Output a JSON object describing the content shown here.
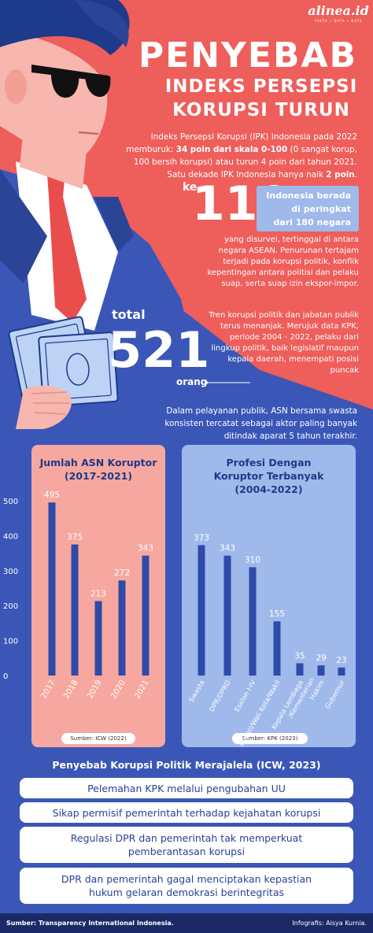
{
  "brand": {
    "logo": "alinea.id",
    "tagline": "FAKTA • DATA • KATA"
  },
  "title": {
    "line1": "PENYEBAB",
    "line2": "INDEKS PERSEPSI",
    "line3": "KORUPSI TURUN"
  },
  "intro": {
    "t1": "Indeks Persepsi Korupsi (IPK) Indonesia pada 2022 memburuk: ",
    "b1": "34 poin dari skala 0-100",
    "t2": " (0 sangat korup, 100 bersih korupsi) atau turun 4 poin dari tahun 2021. Satu dekade IPK Indonesia hanya naik ",
    "b2": "2 poin",
    "t3": "."
  },
  "rank": {
    "prefix": "ke",
    "number": "110",
    "box_line1": "Indonesia berada",
    "box_line2": "di peringkat",
    "box_line3": "dari 180 negara",
    "asean": "yang disurvei, tertinggal di antara negara ASEAN. Penurunan tertajam terjadi pada korupsi politik, konflik kepentingan antara politisi dan pelaku suap, serta suap izin ekspor-impor."
  },
  "kpk": {
    "prefix": "total",
    "number": "521",
    "suffix": "orang",
    "trend": "Tren korupsi politik dan jabatan publik terus menanjak. Merujuk data KPK, periode 2004 - 2022, pelaku dari lingkup politik, baik legislatif maupun kepala daerah, menempati posisi puncak"
  },
  "asn_text": "Dalam pelayanan publik, ASN bersama swasta konsisten tercatat sebagai aktor paling banyak ditindak aparat 5 tahun terakhir.",
  "chart_data": [
    {
      "type": "bar",
      "title": "Jumlah ASN Koruptor (2017-2021)",
      "categories": [
        "2017",
        "2018",
        "2019",
        "2020",
        "2021"
      ],
      "values": [
        495,
        375,
        213,
        272,
        343
      ],
      "yticks": [
        "0",
        "100",
        "200",
        "300",
        "400",
        "500"
      ],
      "ylim": [
        0,
        500
      ],
      "source": "Sumber: ICW (2022)",
      "bar_color": "#2f4aa8"
    },
    {
      "type": "bar",
      "title": "Profesi Dengan Koruptor Terbanyak (2004-2022)",
      "categories": [
        "Swasta",
        "DPR/DPRD",
        "Eselon I-IV",
        "Bupati/Wali Kota/Wakil",
        "Kepala Lembaga /Kementerian",
        "Hakim",
        "Gubernur"
      ],
      "values": [
        373,
        343,
        310,
        155,
        35,
        29,
        23
      ],
      "ylim": [
        0,
        500
      ],
      "source": "Sumber: KPK (2023)",
      "bar_color": "#2f4aa8"
    }
  ],
  "causes": {
    "title": "Penyebab Korupsi Politik Merajalela (ICW, 2023)",
    "items": [
      "Pelemahan KPK melalui pengubahan UU",
      "Sikap permisif pemerintah terhadap kejahatan korupsi",
      "Regulasi DPR dan pemerintah tak memperkuat pemberantasan korupsi",
      "DPR dan pemerintah gagal menciptakan kepastian hukum gelaran demokrasi berintegritas"
    ]
  },
  "footer": {
    "source": "Sumber: Transparency International Indonesia.",
    "credit": "Infografis: Aisya Kurnia."
  },
  "colors": {
    "coral": "#ee5e5b",
    "blue": "#3a57b8",
    "navy": "#1e3a8a",
    "pink_panel": "#f6a8a0",
    "light_blue_panel": "#9eb9ea"
  }
}
